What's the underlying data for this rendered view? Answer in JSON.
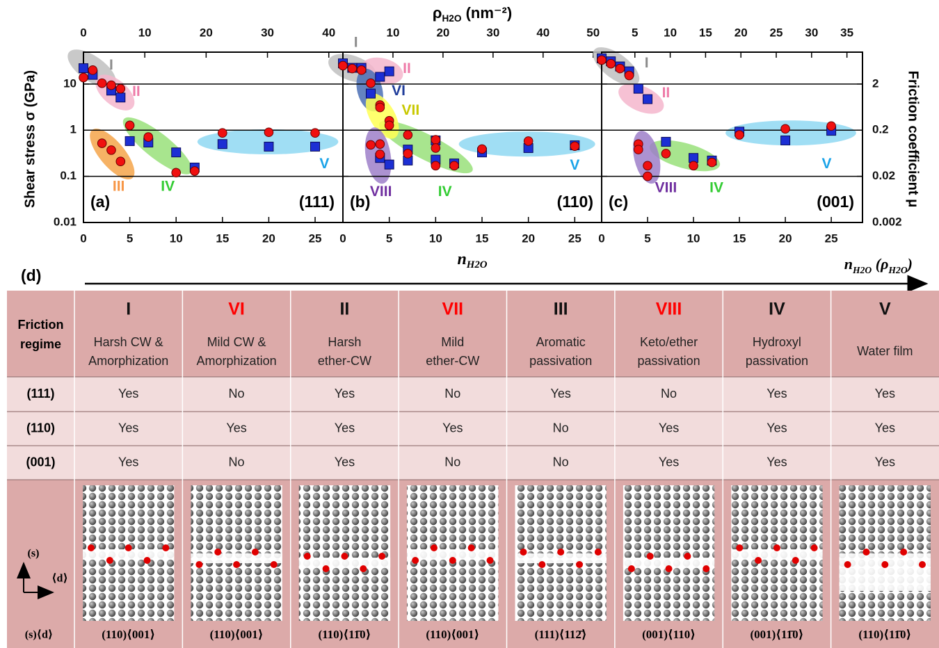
{
  "chart_data": [
    {
      "type": "scatter",
      "panel": "(a)",
      "surface": "(111)",
      "ylabel": "Shear stress σ (GPa)",
      "xlim": [
        0,
        28
      ],
      "xticks": [
        0,
        5,
        10,
        15,
        20,
        25
      ],
      "x2lim": [
        0,
        42.3
      ],
      "x2ticks": [
        0,
        10,
        20,
        30,
        40
      ],
      "ylim": [
        0.01,
        49
      ],
      "yticks": [
        0.01,
        0.1,
        1,
        10
      ],
      "ytick_labels": true,
      "log_y": true,
      "grid": true,
      "series": [
        {
          "marker": "square",
          "color": "#1c2fd4",
          "x": [
            0,
            1,
            3,
            4,
            5,
            7,
            10,
            12,
            15,
            20,
            25
          ],
          "values": [
            22,
            15.8,
            7.2,
            5.1,
            0.58,
            0.54,
            0.33,
            0.155,
            0.5,
            0.44,
            0.44
          ]
        },
        {
          "marker": "circle",
          "color": "#f01010",
          "x": [
            0,
            1,
            2,
            3,
            4,
            2,
            3,
            4,
            5,
            7,
            10,
            12,
            15,
            20,
            25
          ],
          "values": [
            13.8,
            20,
            10.4,
            9.4,
            7.9,
            0.52,
            0.37,
            0.21,
            1.27,
            0.71,
            0.12,
            0.13,
            0.87,
            0.9,
            0.87
          ]
        }
      ],
      "regions": [
        {
          "color": "#bfbfbf",
          "from": [
            -0.6,
            35
          ],
          "to": [
            2.4,
            13.3
          ]
        },
        {
          "color": "#f4b6cc",
          "from": [
            2.4,
            9.7
          ],
          "to": [
            4.4,
            4.4
          ]
        },
        {
          "color": "#f5a54a",
          "from": [
            1.7,
            0.66
          ],
          "to": [
            4.5,
            0.14
          ]
        },
        {
          "color": "#99e07a",
          "from": [
            5.3,
            1.23
          ],
          "to": [
            10.7,
            0.17
          ]
        },
        {
          "color": "#8fd8f2",
          "from": [
            13.5,
            0.56
          ],
          "to": [
            26.3,
            0.56
          ]
        }
      ],
      "annotations": [
        {
          "text": "I",
          "color": "#8c8c8c",
          "x": 3,
          "y": 25
        },
        {
          "text": "II",
          "color": "#ee7aa8",
          "x": 5.7,
          "y": 6.7
        },
        {
          "text": "III",
          "color": "#f79646",
          "x": 3.8,
          "y": 0.059
        },
        {
          "text": "IV",
          "color": "#33cc33",
          "x": 9.1,
          "y": 0.059
        },
        {
          "text": "V",
          "color": "#1aa3e8",
          "x": 26,
          "y": 0.18
        }
      ]
    },
    {
      "type": "scatter",
      "panel": "(b)",
      "surface": "(110)",
      "xlabel": {
        "text": [
          "n"
        ],
        "sub": [
          "H2O"
        ]
      },
      "x2label": {
        "text": [
          "ρ",
          " (nm⁻²)"
        ],
        "sub": [
          "H2O"
        ]
      },
      "xlim": [
        0,
        27.9
      ],
      "xticks": [
        0,
        5,
        10,
        15,
        20,
        25
      ],
      "x2lim": [
        0,
        51.7
      ],
      "x2ticks": [
        10,
        20,
        30,
        40,
        50
      ],
      "ylim": [
        0.01,
        49
      ],
      "yticks": [
        0.01,
        0.1,
        1,
        10
      ],
      "ytick_labels": false,
      "log_y": true,
      "grid": true,
      "series": [
        {
          "marker": "square",
          "color": "#1c2fd4",
          "x": [
            0,
            1,
            2,
            3,
            4,
            5,
            4,
            5,
            7,
            7,
            10,
            10,
            12,
            15,
            20,
            25
          ],
          "values": [
            28,
            22.4,
            22.4,
            6.2,
            14.3,
            18.8,
            0.25,
            0.18,
            0.38,
            0.22,
            0.6,
            0.23,
            0.19,
            0.33,
            0.41,
            0.47
          ]
        },
        {
          "marker": "circle",
          "color": "#f01010",
          "x": [
            0,
            1,
            2,
            3,
            3,
            4,
            4,
            4,
            4,
            5,
            5,
            7,
            7,
            10,
            10,
            10,
            12,
            15,
            20,
            25
          ],
          "values": [
            25,
            21.6,
            20,
            10.4,
            0.48,
            3.5,
            3.1,
            0.5,
            0.3,
            1.6,
            1.27,
            0.79,
            0.31,
            0.62,
            0.41,
            0.17,
            0.17,
            0.39,
            0.58,
            0.45
          ]
        }
      ],
      "regions": [
        {
          "color": "#bfbfbf",
          "from": [
            -0.4,
            27.5
          ],
          "to": [
            2.4,
            17.6
          ]
        },
        {
          "color": "#f4b6cc",
          "from": [
            3.2,
            22
          ],
          "to": [
            5.3,
            17
          ]
        },
        {
          "color": "#99e07a",
          "from": [
            5,
            1.1
          ],
          "to": [
            12.9,
            0.17
          ]
        },
        {
          "color": "#8fd8f2",
          "from": [
            13.7,
            0.5
          ],
          "to": [
            26,
            0.5
          ]
        },
        {
          "color": "#4a6fb5",
          "from": [
            2.6,
            12.4
          ],
          "to": [
            3.2,
            4.4
          ]
        },
        {
          "color": "#ffff55",
          "from": [
            3.5,
            3.7
          ],
          "to": [
            5,
            1.1
          ]
        },
        {
          "color": "#9d7fc9",
          "from": [
            3.5,
            0.66
          ],
          "to": [
            4.1,
            0.12
          ]
        }
      ],
      "annotations": [
        {
          "text": "I",
          "color": "#8c8c8c",
          "x": 1.4,
          "y": 77
        },
        {
          "text": "II",
          "color": "#ee7aa8",
          "x": 6.9,
          "y": 21
        },
        {
          "text": "VI",
          "color": "#1f3c9a",
          "x": 6,
          "y": 6.9
        },
        {
          "text": "VII",
          "color": "#c8c800",
          "x": 7.3,
          "y": 2.6
        },
        {
          "text": "VIII",
          "color": "#7030a0",
          "x": 4.1,
          "y": 0.045
        },
        {
          "text": "IV",
          "color": "#33cc33",
          "x": 11,
          "y": 0.045
        },
        {
          "text": "V",
          "color": "#1aa3e8",
          "x": 25,
          "y": 0.17
        }
      ]
    },
    {
      "type": "scatter",
      "panel": "(c)",
      "surface": "(001)",
      "y2label": "Friction coefficient μ",
      "xlim": [
        0,
        28.4
      ],
      "xticks": [
        0,
        5,
        10,
        15,
        20,
        25
      ],
      "x2lim": [
        0.3,
        37.2
      ],
      "x2ticks": [
        5,
        10,
        15,
        20,
        25,
        30,
        35
      ],
      "ylim": [
        0.01,
        49
      ],
      "yticks": [
        0.01,
        0.1,
        1,
        10
      ],
      "ytick_labels": false,
      "log_y": true,
      "grid": true,
      "y2lim": [
        0.002,
        9.8
      ],
      "y2ticks": [
        0.002,
        0.02,
        0.2,
        2
      ],
      "series": [
        {
          "marker": "square",
          "color": "#1c2fd4",
          "x": [
            0,
            1,
            2,
            3,
            4,
            5,
            7,
            10,
            12,
            15,
            20,
            25
          ],
          "values": [
            36,
            31,
            24,
            18.8,
            7.9,
            4.7,
            0.56,
            0.25,
            0.22,
            0.93,
            0.6,
            0.97
          ]
        },
        {
          "marker": "circle",
          "color": "#f01010",
          "x": [
            0,
            1,
            2,
            3,
            4,
            4,
            5,
            5,
            7,
            10,
            12,
            15,
            20,
            25
          ],
          "values": [
            33,
            27.5,
            21.6,
            15.3,
            0.5,
            0.38,
            0.17,
            0.1,
            0.31,
            0.17,
            0.2,
            0.79,
            1.07,
            1.23
          ]
        }
      ],
      "regions": [
        {
          "color": "#bfbfbf",
          "from": [
            0.15,
            39
          ],
          "to": [
            3,
            14.8
          ]
        },
        {
          "color": "#f4b6cc",
          "from": [
            3,
            6.2
          ],
          "to": [
            5.6,
            3.7
          ]
        },
        {
          "color": "#99e07a",
          "from": [
            6.4,
            0.39
          ],
          "to": [
            11.7,
            0.2
          ]
        },
        {
          "color": "#8fd8f2",
          "from": [
            14.7,
            0.87
          ],
          "to": [
            26.5,
            0.87
          ]
        },
        {
          "color": "#9d7fc9",
          "from": [
            4.5,
            0.56
          ],
          "to": [
            5.3,
            0.12
          ]
        }
      ],
      "annotations": [
        {
          "text": "I",
          "color": "#8c8c8c",
          "x": 4.9,
          "y": 27.5
        },
        {
          "text": "II",
          "color": "#ee7aa8",
          "x": 7,
          "y": 6.2
        },
        {
          "text": "VIII",
          "color": "#7030a0",
          "x": 7,
          "y": 0.055
        },
        {
          "text": "IV",
          "color": "#33cc33",
          "x": 12.5,
          "y": 0.055
        },
        {
          "text": "V",
          "color": "#1aa3e8",
          "x": 24.5,
          "y": 0.18
        }
      ]
    }
  ],
  "panel_d": {
    "label": "(d)",
    "arrow_label": {
      "text": [
        "n",
        " (ρ",
        ")"
      ],
      "sub": [
        "H2O",
        "H2O"
      ]
    },
    "row_header": [
      "Friction",
      "regime"
    ],
    "regimes": [
      {
        "numeral": "I",
        "color": "#111111",
        "description": [
          "Harsh CW &",
          "Amorphization"
        ]
      },
      {
        "numeral": "VI",
        "color": "#ff0000",
        "description": [
          "Mild CW &",
          "Amorphization"
        ]
      },
      {
        "numeral": "II",
        "color": "#111111",
        "description": [
          "Harsh",
          "ether-CW"
        ]
      },
      {
        "numeral": "VII",
        "color": "#ff0000",
        "description": [
          "Mild",
          "ether-CW"
        ]
      },
      {
        "numeral": "III",
        "color": "#111111",
        "description": [
          "Aromatic",
          "passivation"
        ]
      },
      {
        "numeral": "VIII",
        "color": "#ff0000",
        "description": [
          "Keto/ether",
          "passivation"
        ]
      },
      {
        "numeral": "IV",
        "color": "#111111",
        "description": [
          "Hydroxyl",
          "passivation"
        ]
      },
      {
        "numeral": "V",
        "color": "#111111",
        "description": [
          "Water film"
        ]
      }
    ],
    "rows": [
      {
        "surface": "(111)",
        "cells": [
          "Yes",
          "No",
          "Yes",
          "No",
          "Yes",
          "No",
          "Yes",
          "Yes"
        ]
      },
      {
        "surface": "(110)",
        "cells": [
          "Yes",
          "Yes",
          "Yes",
          "Yes",
          "No",
          "Yes",
          "Yes",
          "Yes"
        ]
      },
      {
        "surface": "(001)",
        "cells": [
          "Yes",
          "No",
          "Yes",
          "No",
          "No",
          "Yes",
          "Yes",
          "Yes"
        ]
      }
    ],
    "orientation": {
      "s": "(s)",
      "d": "⟨d⟩",
      "sd": "(s)⟨d⟩"
    },
    "images": [
      "(110)⟨001⟩",
      "(110)⟨001⟩",
      "(110)⟨11̄0⟩",
      "(110)⟨001⟩",
      "(111)⟨112̄⟩",
      "(001)⟨110⟩",
      "(001)⟨11̄0⟩",
      "(110)⟨11̄0⟩"
    ]
  }
}
